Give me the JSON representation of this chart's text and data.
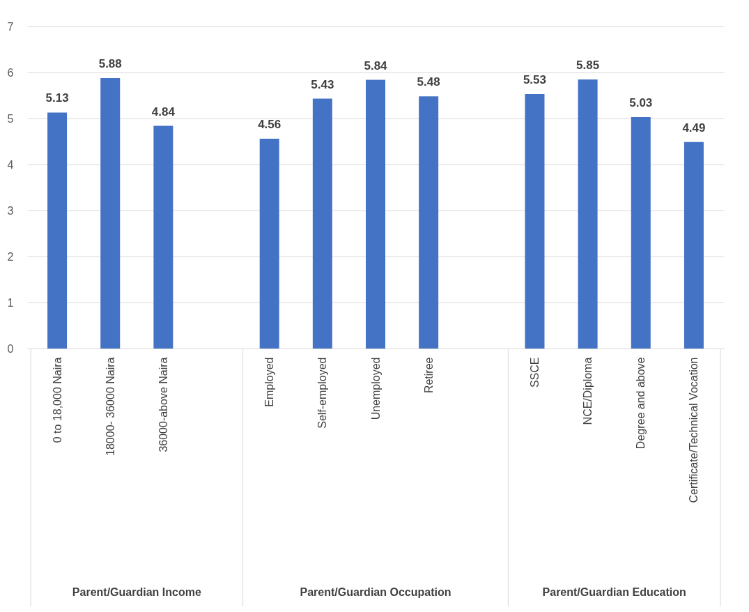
{
  "chart_data": {
    "type": "bar",
    "categories": [
      "0 to 18,000 Naira",
      "18000- 36000 Naira",
      "36000-above Naira",
      null,
      "Employed",
      "Self-employed",
      "Unemployed",
      "Retiree",
      null,
      "SSCE",
      "NCE/Diploma",
      "Degree and above",
      "Certificate/Technical Vocation"
    ],
    "values": [
      5.13,
      5.88,
      4.84,
      null,
      4.56,
      5.43,
      5.84,
      5.48,
      null,
      5.53,
      5.85,
      5.03,
      4.49
    ],
    "color": "#4472c4",
    "ylim": [
      0,
      7
    ],
    "yticks": [
      0,
      1,
      2,
      3,
      4,
      5,
      6,
      7
    ],
    "grid": "y",
    "data_labels": true,
    "annotations": [
      "Parent/Guardian Income",
      "Parent/Guardian Occupation",
      "Parent/Guardian Education"
    ]
  }
}
